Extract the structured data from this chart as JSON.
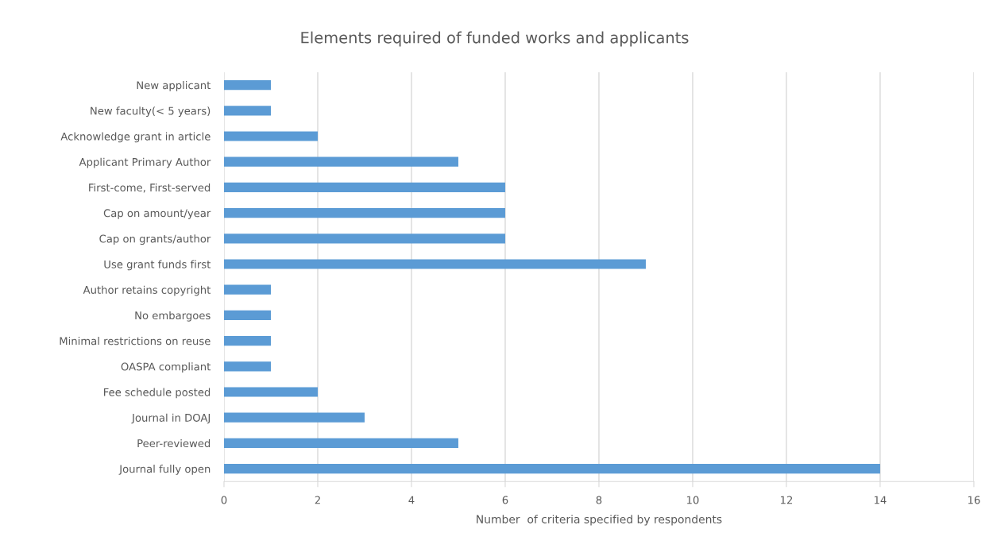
{
  "chart_data": {
    "type": "bar",
    "orientation": "horizontal",
    "title": "Elements required of funded works and applicants",
    "xlabel": "Number  of criteria specified by respondents",
    "categories": [
      "New applicant",
      "New faculty(< 5 years)",
      "Acknowledge grant in article",
      "Applicant Primary Author",
      "First-come, First-served",
      "Cap on amount/year",
      "Cap on grants/author",
      "Use grant funds first",
      "Author retains copyright",
      "No embargoes",
      "Minimal restrictions on reuse",
      "OASPA compliant",
      "Fee schedule posted",
      "Journal in DOAJ",
      "Peer-reviewed",
      "Journal fully open"
    ],
    "values": [
      1,
      1,
      2,
      5,
      6,
      6,
      6,
      9,
      1,
      1,
      1,
      1,
      2,
      3,
      5,
      14
    ],
    "color": "#5b9bd5",
    "xlim": [
      0,
      16
    ],
    "xticks": [
      0,
      2,
      4,
      6,
      8,
      10,
      12,
      14,
      16
    ],
    "grid": "x"
  }
}
